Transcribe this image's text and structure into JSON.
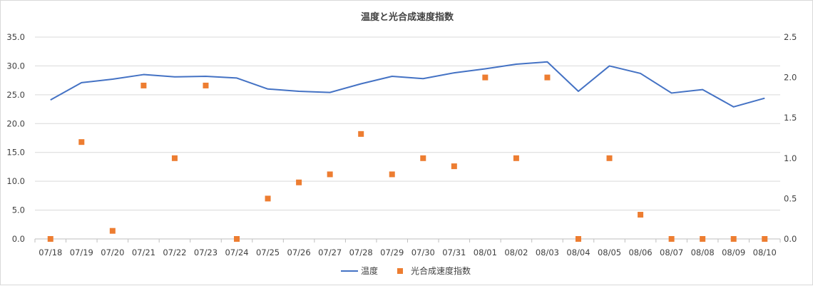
{
  "chart_data": {
    "type": "line",
    "title": "温度と光合成速度指数",
    "categories": [
      "07/18",
      "07/19",
      "07/20",
      "07/21",
      "07/22",
      "07/23",
      "07/24",
      "07/25",
      "07/26",
      "07/27",
      "07/28",
      "07/29",
      "07/30",
      "07/31",
      "08/01",
      "08/02",
      "08/03",
      "08/04",
      "08/05",
      "08/06",
      "08/07",
      "08/08",
      "08/09",
      "08/10"
    ],
    "series": [
      {
        "name": "温度",
        "type": "line",
        "axis": "left",
        "color": "#4472c4",
        "values": [
          24.1,
          27.1,
          27.7,
          28.5,
          28.1,
          28.2,
          27.9,
          26.0,
          25.6,
          25.4,
          26.9,
          28.2,
          27.8,
          28.8,
          29.5,
          30.3,
          30.7,
          25.6,
          30.0,
          28.7,
          25.3,
          25.9,
          22.9,
          24.4
        ]
      },
      {
        "name": "光合成速度指数",
        "type": "scatter",
        "axis": "right",
        "color": "#ed7d31",
        "values": [
          0.0,
          1.2,
          0.1,
          1.9,
          1.0,
          1.9,
          0.0,
          0.5,
          0.7,
          0.8,
          1.3,
          0.8,
          1.0,
          0.9,
          2.0,
          1.0,
          2.0,
          0.0,
          1.0,
          0.3,
          0.0,
          0.0,
          0.0,
          0.0
        ]
      }
    ],
    "y_left": {
      "min": 0,
      "max": 35,
      "step": 5,
      "ticks": [
        "0.0",
        "5.0",
        "10.0",
        "15.0",
        "20.0",
        "25.0",
        "30.0",
        "35.0"
      ]
    },
    "y_right": {
      "min": 0,
      "max": 2.5,
      "step": 0.5,
      "ticks": [
        "0.0",
        "0.5",
        "1.0",
        "1.5",
        "2.0",
        "2.5"
      ]
    },
    "grid": true,
    "gridColor": "#d9d9d9",
    "legend_position": "bottom"
  }
}
